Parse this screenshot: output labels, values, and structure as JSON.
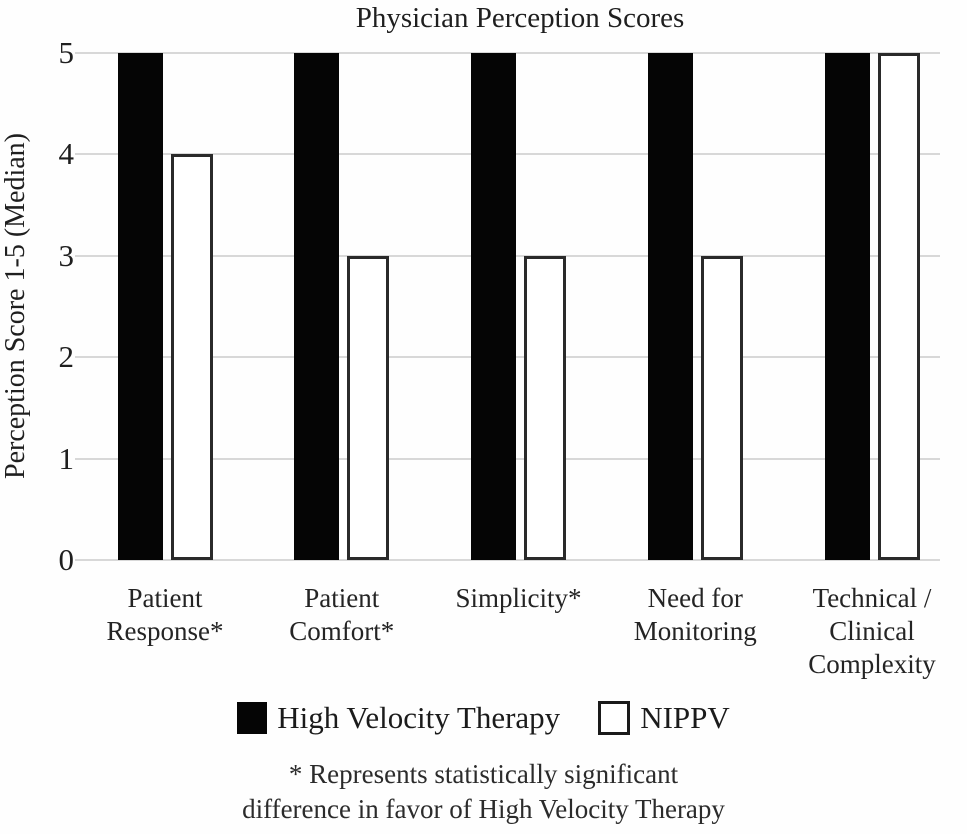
{
  "chart_data": {
    "type": "bar",
    "title": "Physician Perception Scores",
    "xlabel": "",
    "ylabel": "Perception Score 1-5 (Median)",
    "ylim": [
      0,
      5
    ],
    "yticks": [
      0,
      1,
      2,
      3,
      4,
      5
    ],
    "grid": true,
    "legend_position": "bottom",
    "categories": [
      "Patient Response*",
      "Patient Comfort*",
      "Simplicity*",
      "Need for Monitoring",
      "Technical / Clinical Complexity"
    ],
    "series": [
      {
        "name": "High Velocity Therapy",
        "values": [
          5,
          5,
          5,
          5,
          5
        ],
        "fill": "#050505",
        "style": "filled"
      },
      {
        "name": "NIPPV",
        "values": [
          4,
          3,
          3,
          3,
          5
        ],
        "fill": "#ffffff",
        "border": "#2a2a2a",
        "style": "outline"
      }
    ],
    "footnote_line1": "* Represents statistically significant",
    "footnote_line2": "difference in favor of High Velocity Therapy",
    "colors": {
      "text": "#1e1e1e",
      "gridline": "#d8d8d8",
      "bar_filled": "#050505",
      "bar_outline_border": "#2a2a2a",
      "background": "#fefefe"
    }
  }
}
